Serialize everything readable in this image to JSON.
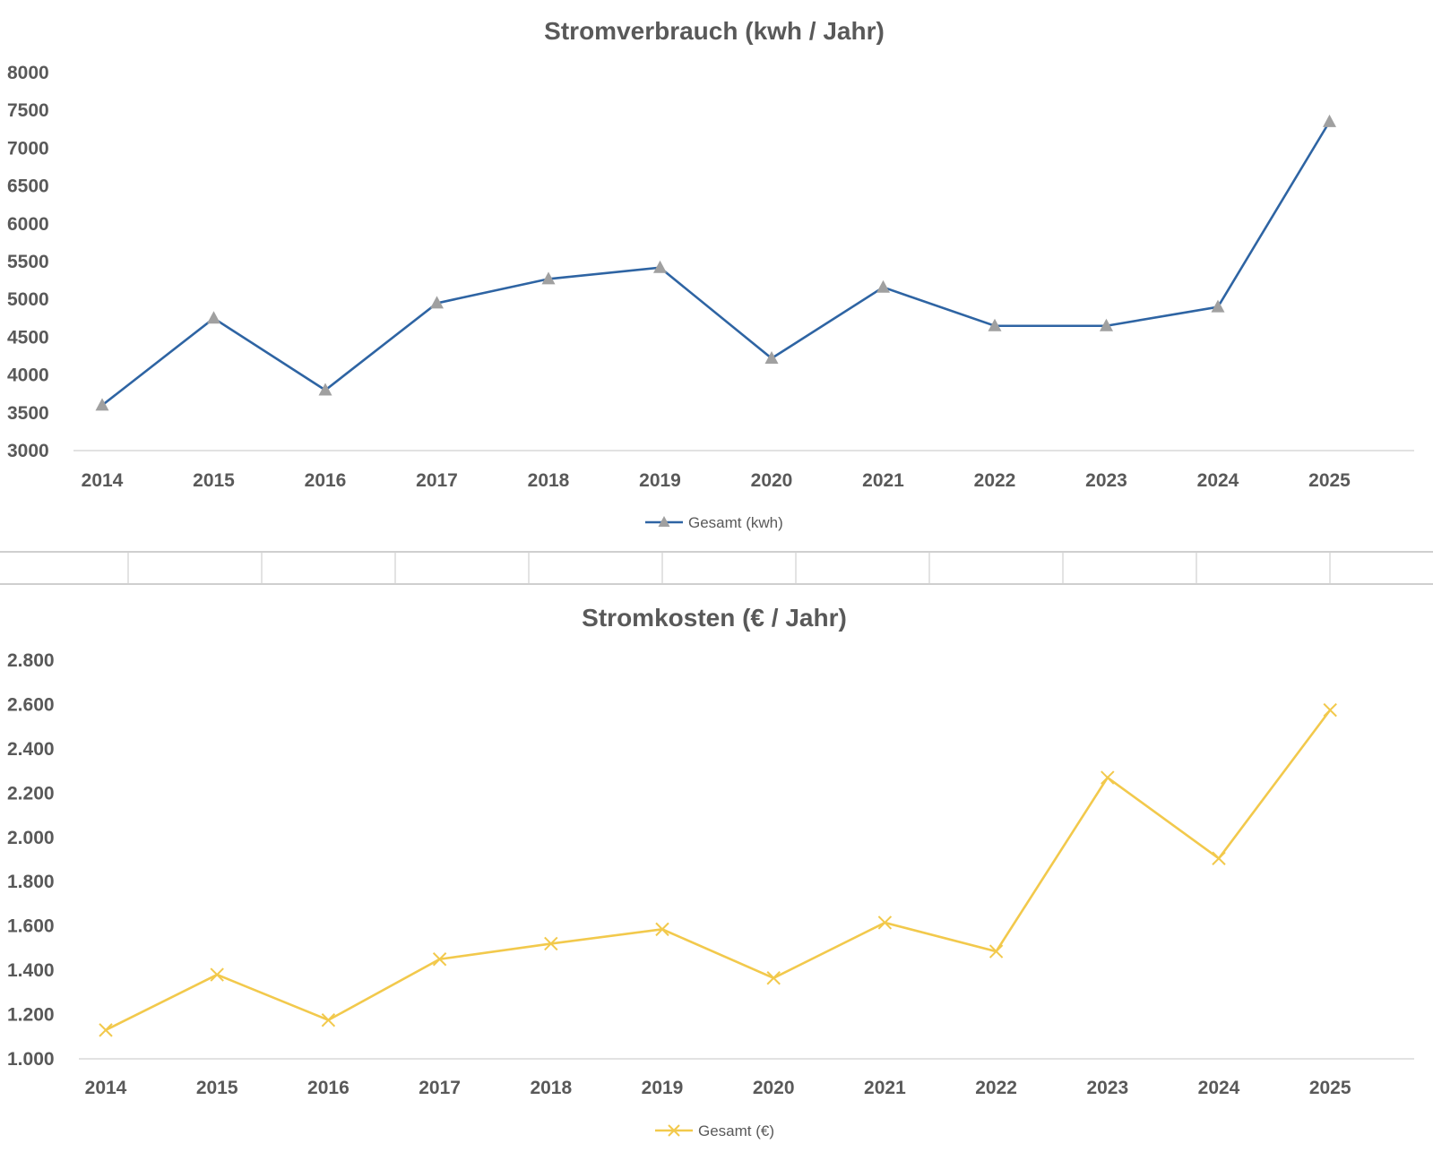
{
  "chart_data": [
    {
      "type": "line",
      "title": "Stromverbrauch (kwh / Jahr)",
      "categories": [
        "2014",
        "2015",
        "2016",
        "2017",
        "2018",
        "2019",
        "2020",
        "2021",
        "2022",
        "2023",
        "2024",
        "2025"
      ],
      "series": [
        {
          "name": "Gesamt (kwh)",
          "values": [
            3600,
            4750,
            3800,
            4950,
            5270,
            5420,
            4220,
            5160,
            4650,
            4650,
            4900,
            7350
          ],
          "color": "#2E64A3",
          "marker": "triangle",
          "marker_color": "#A0A0A0"
        }
      ],
      "ylim": [
        3000,
        8000
      ],
      "yticks": [
        "8000",
        "7500",
        "7000",
        "6500",
        "6000",
        "5500",
        "5000",
        "4500",
        "4000",
        "3500",
        "3000"
      ],
      "ytick_values": [
        8000,
        7500,
        7000,
        6500,
        6000,
        5500,
        5000,
        4500,
        4000,
        3500,
        3000
      ],
      "grid": false,
      "legend": "bottom"
    },
    {
      "type": "line",
      "title": "Stromkosten (€ / Jahr)",
      "categories": [
        "2014",
        "2015",
        "2016",
        "2017",
        "2018",
        "2019",
        "2020",
        "2021",
        "2022",
        "2023",
        "2024",
        "2025"
      ],
      "series": [
        {
          "name": "Gesamt (€)",
          "values": [
            1130,
            1380,
            1175,
            1450,
            1520,
            1585,
            1365,
            1615,
            1485,
            2270,
            1905,
            2575
          ],
          "color": "#F2C94C",
          "marker": "x"
        }
      ],
      "ylim": [
        1000,
        2800
      ],
      "yticks": [
        "2.800",
        "2.600",
        "2.400",
        "2.200",
        "2.000",
        "1.800",
        "1.600",
        "1.400",
        "1.200",
        "1.000"
      ],
      "ytick_values": [
        2800,
        2600,
        2400,
        2200,
        2000,
        1800,
        1600,
        1400,
        1200,
        1000
      ],
      "grid": false,
      "legend": "bottom"
    }
  ]
}
